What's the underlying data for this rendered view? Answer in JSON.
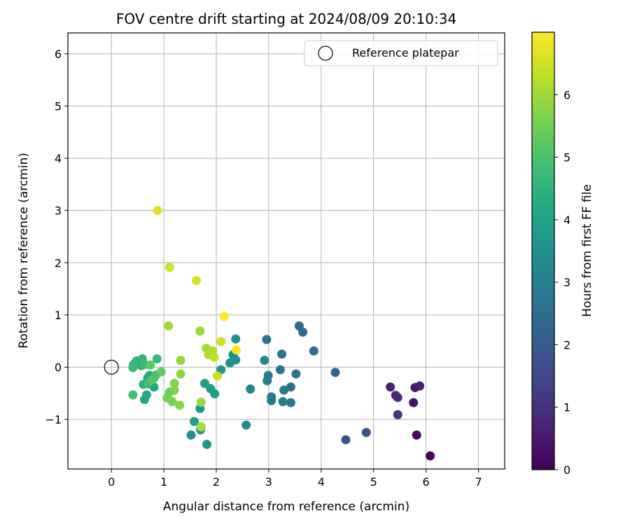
{
  "chart_data": {
    "type": "scatter",
    "title": "FOV centre drift starting at 2024/08/09 20:10:34",
    "xlabel": "Angular distance from reference (arcmin)",
    "ylabel": "Rotation from reference (arcmin)",
    "colorbar_label": "Hours from first FF file",
    "colormap": "viridis",
    "xlim": [
      -0.83,
      7.5
    ],
    "ylim": [
      -1.95,
      6.4
    ],
    "xticks": [
      0,
      1,
      2,
      3,
      4,
      5,
      6,
      7
    ],
    "yticks": [
      -1,
      0,
      1,
      2,
      3,
      4,
      5,
      6
    ],
    "xtick_labels": [
      "0",
      "1",
      "2",
      "3",
      "4",
      "5",
      "6",
      "7"
    ],
    "ytick_labels": [
      "−1",
      "0",
      "1",
      "2",
      "3",
      "4",
      "5",
      "6"
    ],
    "colorbar_range": [
      0,
      7
    ],
    "colorbar_ticks": [
      0,
      1,
      2,
      3,
      4,
      5,
      6
    ],
    "colorbar_tick_labels": [
      "0",
      "1",
      "2",
      "3",
      "4",
      "5",
      "6"
    ],
    "grid": true,
    "legend_position": "top-right",
    "legend_label": "Reference platepar",
    "reference_point": {
      "x": 0,
      "y": 0
    },
    "points": [
      {
        "x": 6.08,
        "y": -1.7,
        "h": 0.05
      },
      {
        "x": 5.82,
        "y": -1.3,
        "h": 0.15
      },
      {
        "x": 5.76,
        "y": -0.68,
        "h": 0.35
      },
      {
        "x": 5.79,
        "y": -0.39,
        "h": 0.5
      },
      {
        "x": 5.88,
        "y": -0.36,
        "h": 0.6
      },
      {
        "x": 5.32,
        "y": -0.38,
        "h": 0.7
      },
      {
        "x": 5.42,
        "y": -0.54,
        "h": 0.8
      },
      {
        "x": 5.46,
        "y": -0.58,
        "h": 0.9
      },
      {
        "x": 5.46,
        "y": -0.91,
        "h": 1.1
      },
      {
        "x": 4.86,
        "y": -1.25,
        "h": 1.7
      },
      {
        "x": 4.47,
        "y": -1.39,
        "h": 1.8
      },
      {
        "x": 4.27,
        "y": -0.1,
        "h": 2.2
      },
      {
        "x": 3.86,
        "y": 0.31,
        "h": 2.6
      },
      {
        "x": 3.58,
        "y": 0.79,
        "h": 2.5
      },
      {
        "x": 3.65,
        "y": 0.67,
        "h": 2.55
      },
      {
        "x": 3.52,
        "y": -0.13,
        "h": 2.7
      },
      {
        "x": 3.42,
        "y": -0.38,
        "h": 2.6
      },
      {
        "x": 3.42,
        "y": -0.68,
        "h": 2.8
      },
      {
        "x": 3.27,
        "y": -0.66,
        "h": 2.9
      },
      {
        "x": 3.29,
        "y": -0.44,
        "h": 2.85
      },
      {
        "x": 3.22,
        "y": -0.05,
        "h": 2.75
      },
      {
        "x": 3.25,
        "y": 0.25,
        "h": 2.65
      },
      {
        "x": 3.05,
        "y": -0.57,
        "h": 2.8
      },
      {
        "x": 3.05,
        "y": -0.64,
        "h": 2.85
      },
      {
        "x": 2.99,
        "y": -0.16,
        "h": 2.9
      },
      {
        "x": 2.97,
        "y": -0.26,
        "h": 2.95
      },
      {
        "x": 2.96,
        "y": 0.53,
        "h": 2.6
      },
      {
        "x": 2.92,
        "y": 0.13,
        "h": 3.1
      },
      {
        "x": 2.65,
        "y": -0.42,
        "h": 3.2
      },
      {
        "x": 2.57,
        "y": -1.11,
        "h": 3.3
      },
      {
        "x": 2.37,
        "y": 0.54,
        "h": 3.4
      },
      {
        "x": 2.32,
        "y": 0.24,
        "h": 3.35
      },
      {
        "x": 2.37,
        "y": 0.14,
        "h": 3.45
      },
      {
        "x": 2.26,
        "y": 0.08,
        "h": 3.5
      },
      {
        "x": 2.09,
        "y": -0.05,
        "h": 3.6
      },
      {
        "x": 1.97,
        "y": -0.51,
        "h": 3.8
      },
      {
        "x": 1.89,
        "y": -0.41,
        "h": 3.85
      },
      {
        "x": 1.78,
        "y": -0.31,
        "h": 3.9
      },
      {
        "x": 1.82,
        "y": -1.48,
        "h": 3.7
      },
      {
        "x": 1.69,
        "y": -0.79,
        "h": 3.65
      },
      {
        "x": 1.7,
        "y": -1.2,
        "h": 3.75
      },
      {
        "x": 1.58,
        "y": -1.04,
        "h": 3.95
      },
      {
        "x": 1.52,
        "y": -1.3,
        "h": 3.55
      },
      {
        "x": 0.63,
        "y": -0.62,
        "h": 4.1
      },
      {
        "x": 0.67,
        "y": -0.53,
        "h": 4.2
      },
      {
        "x": 0.69,
        "y": -0.21,
        "h": 4.25
      },
      {
        "x": 0.73,
        "y": -0.16,
        "h": 4.3
      },
      {
        "x": 0.81,
        "y": -0.38,
        "h": 4.15
      },
      {
        "x": 0.61,
        "y": -0.33,
        "h": 4.4
      },
      {
        "x": 0.57,
        "y": 0.03,
        "h": 4.45
      },
      {
        "x": 0.48,
        "y": 0.12,
        "h": 4.5
      },
      {
        "x": 0.42,
        "y": 0.05,
        "h": 4.6
      },
      {
        "x": 0.41,
        "y": -0.01,
        "h": 4.7
      },
      {
        "x": 0.59,
        "y": 0.16,
        "h": 4.55
      },
      {
        "x": 0.87,
        "y": 0.16,
        "h": 4.65
      },
      {
        "x": 0.63,
        "y": 0.05,
        "h": 4.75
      },
      {
        "x": 0.69,
        "y": -0.32,
        "h": 4.8
      },
      {
        "x": 0.41,
        "y": -0.53,
        "h": 4.85
      },
      {
        "x": 0.81,
        "y": -0.21,
        "h": 4.9
      },
      {
        "x": 0.85,
        "y": -0.15,
        "h": 5.0
      },
      {
        "x": 0.77,
        "y": -0.25,
        "h": 5.1
      },
      {
        "x": 0.74,
        "y": 0.04,
        "h": 5.2
      },
      {
        "x": 0.95,
        "y": -0.09,
        "h": 5.3
      },
      {
        "x": 1.11,
        "y": -0.48,
        "h": 5.4
      },
      {
        "x": 1.06,
        "y": -0.59,
        "h": 5.5
      },
      {
        "x": 1.16,
        "y": -0.66,
        "h": 5.6
      },
      {
        "x": 1.2,
        "y": -0.44,
        "h": 5.65
      },
      {
        "x": 1.2,
        "y": -0.31,
        "h": 5.7
      },
      {
        "x": 1.3,
        "y": -0.73,
        "h": 5.75
      },
      {
        "x": 1.32,
        "y": -0.13,
        "h": 5.8
      },
      {
        "x": 1.32,
        "y": 0.13,
        "h": 5.85
      },
      {
        "x": 1.09,
        "y": 0.79,
        "h": 6.0
      },
      {
        "x": 1.71,
        "y": -0.67,
        "h": 5.9
      },
      {
        "x": 1.71,
        "y": -1.14,
        "h": 6.1
      },
      {
        "x": 1.69,
        "y": 0.69,
        "h": 5.95
      },
      {
        "x": 1.81,
        "y": 0.36,
        "h": 6.05
      },
      {
        "x": 1.85,
        "y": 0.24,
        "h": 6.15
      },
      {
        "x": 1.93,
        "y": 0.31,
        "h": 6.2
      },
      {
        "x": 1.96,
        "y": 0.19,
        "h": 6.3
      },
      {
        "x": 2.02,
        "y": -0.17,
        "h": 6.4
      },
      {
        "x": 2.09,
        "y": 0.49,
        "h": 6.5
      },
      {
        "x": 2.38,
        "y": 0.33,
        "h": 6.95
      },
      {
        "x": 2.15,
        "y": 0.97,
        "h": 7.0
      },
      {
        "x": 1.62,
        "y": 1.66,
        "h": 6.55
      },
      {
        "x": 1.11,
        "y": 1.91,
        "h": 6.45
      },
      {
        "x": 0.88,
        "y": 3.0,
        "h": 6.6
      }
    ]
  }
}
